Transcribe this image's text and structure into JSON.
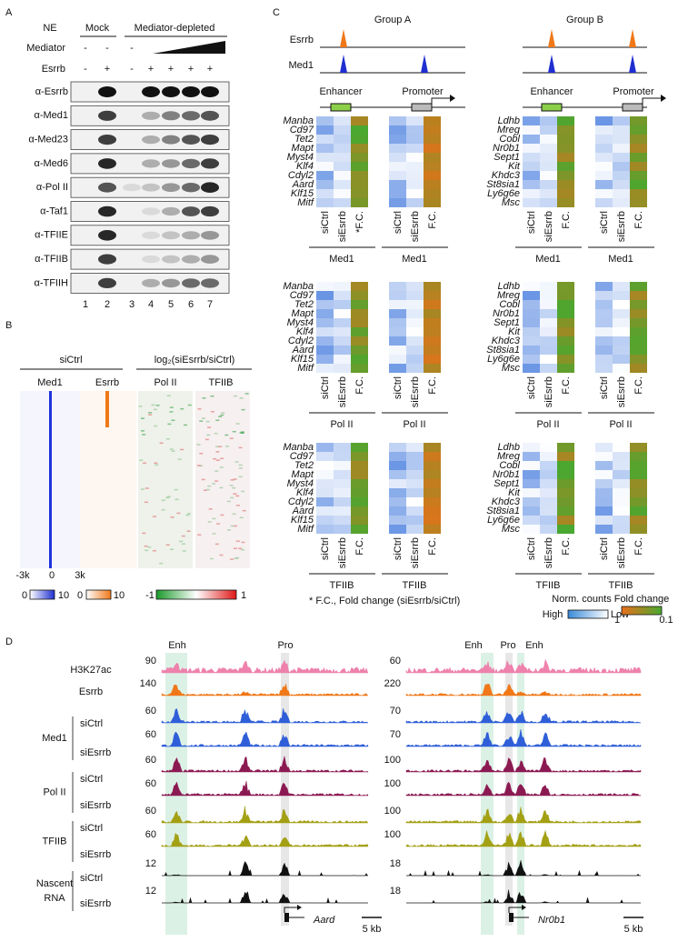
{
  "panel_a": {
    "label": "A",
    "ne": "NE",
    "mock": "Mock",
    "depleted": "Mediator-depleted",
    "mediator": "Mediator",
    "esrrb": "Esrrb",
    "mediator_row": [
      "-",
      "-",
      "-"
    ],
    "esrrb_row": [
      "-",
      "+",
      "-",
      "+",
      "+",
      "+",
      "+"
    ],
    "blots": [
      "α-Esrrb",
      "α-Med1",
      "α-Med23",
      "α-Med6",
      "α-Pol II",
      "α-Taf1",
      "α-TFIIE",
      "α-TFIIB",
      "α-TFIIH"
    ],
    "lanes": [
      "1",
      "2",
      "3",
      "4",
      "5",
      "6",
      "7"
    ]
  },
  "panel_b": {
    "label": "B",
    "group1": "siCtrl",
    "group2": "log₂(siEsrrb/siCtrl)",
    "columns": [
      "Med1",
      "Esrrb",
      "Pol II",
      "TFIIB"
    ],
    "axis": [
      "-3k",
      "0",
      "3k"
    ],
    "scales": [
      [
        "0",
        "10"
      ],
      [
        "0",
        "10"
      ],
      [
        "-1",
        "1"
      ]
    ]
  },
  "panel_c": {
    "label": "C",
    "groups": [
      {
        "title": "Group A",
        "genes": [
          "Manba",
          "Cd97",
          "Tet2",
          "Mapt",
          "Myst4",
          "Klf4",
          "Cdyl2",
          "Aard",
          "Klf15",
          "Mitf"
        ]
      },
      {
        "title": "Group B",
        "genes": [
          "Ldhb",
          "Mreg",
          "Cobl",
          "Nr0b1",
          "Sept1",
          "Kit",
          "Khdc3",
          "St8sia1",
          "Ly6g6e",
          "Msc"
        ]
      }
    ],
    "tracks": [
      "Esrrb",
      "Med1"
    ],
    "enhancer": "Enhancer",
    "promoter": "Promoter",
    "columns": [
      "siCtrl",
      "siEsrrb",
      "F.C."
    ],
    "starred_column": "*F.C.",
    "factors": [
      "Med1",
      "Pol II",
      "TFIIB"
    ],
    "footnote": "* F.C., Fold change (siEsrrb/siCtrl)",
    "legend_counts": {
      "title": "Norm. counts",
      "high": "High",
      "low": "Low"
    },
    "legend_fc": {
      "title": "Fold change",
      "high": "1",
      "low": "0.1"
    }
  },
  "panel_d": {
    "label": "D",
    "enh": "Enh",
    "pro": "Pro",
    "singles": [
      "H3K27ac",
      "Esrrb"
    ],
    "groups": [
      {
        "name": [
          "Med1"
        ]
      },
      {
        "name": [
          "Pol II"
        ]
      },
      {
        "name": [
          "TFIIB"
        ]
      },
      {
        "name": [
          "Nascent",
          "RNA"
        ]
      }
    ],
    "conditions": [
      "siCtrl",
      "siEsrrb"
    ],
    "colors": [
      "#ee82ad",
      "#f07818",
      "#2f5fd8",
      "#2f5fd8",
      "#8c1a52",
      "#8c1a52",
      "#a3a014",
      "#a3a014",
      "#111111",
      "#111111"
    ],
    "loci": [
      {
        "gene": "Aard",
        "scale_bar": "5 kb",
        "scales": [
          90,
          140,
          60,
          60,
          60,
          60,
          60,
          60,
          12,
          12
        ]
      },
      {
        "gene": "Nr0b1",
        "scale_bar": "5 kb",
        "scales": [
          60,
          220,
          70,
          70,
          100,
          100,
          100,
          100,
          18,
          18
        ]
      }
    ]
  }
}
